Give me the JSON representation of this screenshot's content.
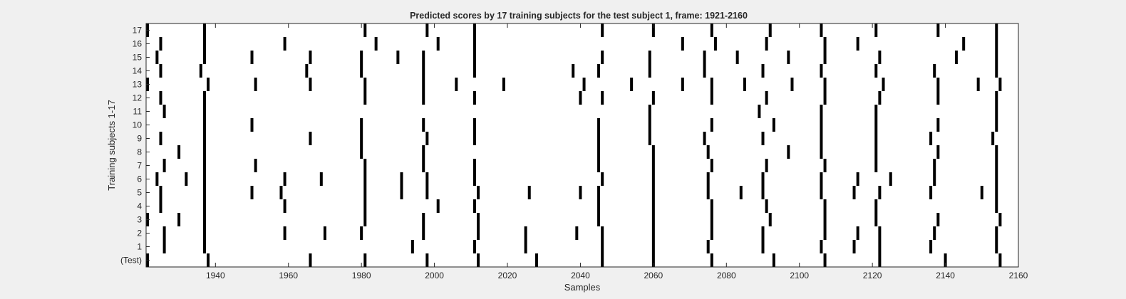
{
  "chart_data": {
    "type": "raster",
    "title": "Predicted scores by 17 training subjects for the test subject 1, frame: 1921-2160",
    "xlabel": "Samples",
    "ylabel": "Training subjects 1-17",
    "xlim": [
      1921,
      2160
    ],
    "xticks": [
      1940,
      1960,
      1980,
      2000,
      2020,
      2040,
      2060,
      2080,
      2100,
      2120,
      2140,
      2160
    ],
    "rows": [
      {
        "label": "(Test)",
        "events": [
          1921,
          1938,
          1966,
          1981,
          1998,
          2012,
          2028,
          2046,
          2060,
          2076,
          2093,
          2107,
          2122,
          2140,
          2155
        ]
      },
      {
        "label": "1",
        "events": [
          1926,
          1937,
          1994,
          2011,
          2025,
          2046,
          2060,
          2075,
          2090,
          2106,
          2115,
          2122,
          2136,
          2154
        ]
      },
      {
        "label": "2",
        "events": [
          1926,
          1937,
          1959,
          1970,
          1980,
          1997,
          2012,
          2025,
          2039,
          2046,
          2060,
          2076,
          2090,
          2107,
          2116,
          2122,
          2137,
          2154
        ]
      },
      {
        "label": "3",
        "events": [
          1921,
          1930,
          1937,
          1981,
          1997,
          2012,
          2045,
          2060,
          2076,
          2092,
          2107,
          2121,
          2138,
          2155
        ]
      },
      {
        "label": "4",
        "events": [
          1925,
          1937,
          1959,
          1981,
          2001,
          2011,
          2045,
          2060,
          2076,
          2091,
          2107,
          2121,
          2154
        ]
      },
      {
        "label": "5",
        "events": [
          1925,
          1937,
          1950,
          1958,
          1981,
          1991,
          1998,
          2012,
          2026,
          2040,
          2045,
          2060,
          2075,
          2084,
          2090,
          2106,
          2115,
          2122,
          2136,
          2150,
          2154
        ]
      },
      {
        "label": "6",
        "events": [
          1924,
          1932,
          1937,
          1959,
          1969,
          1981,
          1991,
          1998,
          2011,
          2046,
          2060,
          2075,
          2090,
          2106,
          2116,
          2125,
          2137,
          2154
        ]
      },
      {
        "label": "7",
        "events": [
          1926,
          1937,
          1951,
          1981,
          1997,
          2011,
          2045,
          2060,
          2076,
          2091,
          2107,
          2121,
          2137,
          2154
        ]
      },
      {
        "label": "8",
        "events": [
          1930,
          1937,
          1980,
          1997,
          2045,
          2060,
          2075,
          2097,
          2106,
          2121,
          2138,
          2154
        ]
      },
      {
        "label": "9",
        "events": [
          1925,
          1937,
          1966,
          1980,
          1998,
          2011,
          2045,
          2059,
          2074,
          2090,
          2106,
          2121,
          2136,
          2153
        ]
      },
      {
        "label": "10",
        "events": [
          1937,
          1950,
          1980,
          1997,
          2011,
          2045,
          2059,
          2076,
          2093,
          2106,
          2121,
          2138,
          2154
        ]
      },
      {
        "label": "11",
        "events": [
          1926,
          1937,
          2059,
          2089,
          2106,
          2121,
          2154
        ]
      },
      {
        "label": "12",
        "events": [
          1925,
          1937,
          1981,
          1997,
          2011,
          2040,
          2046,
          2060,
          2076,
          2091,
          2107,
          2122,
          2138,
          2154
        ]
      },
      {
        "label": "13",
        "events": [
          1921,
          1938,
          1951,
          1966,
          1981,
          1997,
          2006,
          2019,
          2041,
          2054,
          2068,
          2076,
          2085,
          2098,
          2107,
          2123,
          2138,
          2149,
          2155
        ]
      },
      {
        "label": "14",
        "events": [
          1925,
          1936,
          1965,
          1980,
          1997,
          2011,
          2038,
          2045,
          2059,
          2074,
          2090,
          2106,
          2121,
          2137,
          2154
        ]
      },
      {
        "label": "15",
        "events": [
          1924,
          1937,
          1950,
          1966,
          1980,
          1990,
          1997,
          2011,
          2046,
          2059,
          2074,
          2083,
          2097,
          2107,
          2122,
          2143,
          2154
        ]
      },
      {
        "label": "16",
        "events": [
          1925,
          1937,
          1959,
          1984,
          2001,
          2011,
          2068,
          2077,
          2091,
          2107,
          2116,
          2145,
          2154
        ]
      },
      {
        "label": "17",
        "events": [
          1921,
          1937,
          1981,
          1998,
          2011,
          2046,
          2060,
          2076,
          2092,
          2106,
          2121,
          2138,
          2154
        ]
      }
    ]
  }
}
